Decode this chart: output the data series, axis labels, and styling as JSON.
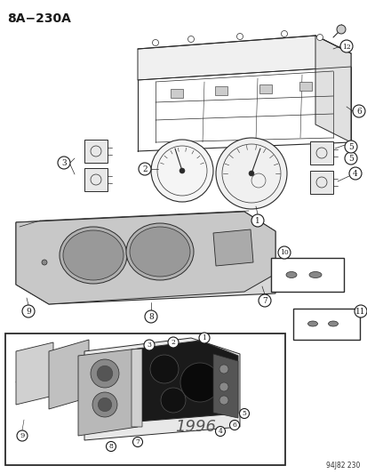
{
  "title": "8A−230A",
  "bg_color": "#ffffff",
  "fig_width": 4.14,
  "fig_height": 5.33,
  "dpi": 100,
  "diagram_code": "94J82 230",
  "year_label": "1996",
  "line_color": "#2a2a2a",
  "callout_color": "#1a1a1a",
  "gray_fill": "#d8d8d8",
  "light_gray": "#ebebeb"
}
